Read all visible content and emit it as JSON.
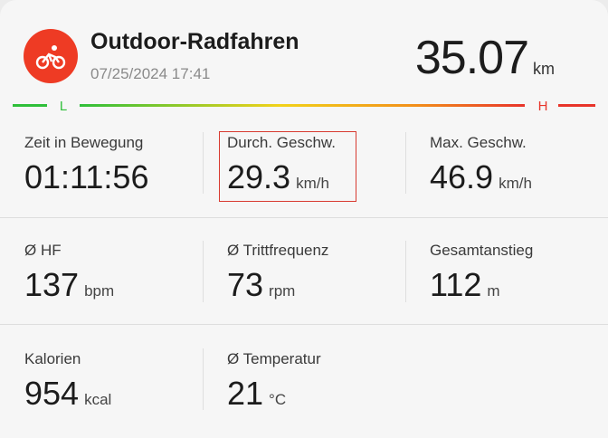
{
  "header": {
    "title": "Outdoor-Radfahren",
    "datetime": "07/25/2024 17:41",
    "distance": "35.07",
    "distance_unit": "km"
  },
  "intensity_bar": {
    "low": "L",
    "high": "H"
  },
  "stats": [
    {
      "label": "Zeit in Bewegung",
      "value": "01:11:56"
    },
    {
      "label": "Durch. Geschw.",
      "value": "29.3",
      "unit": "km/h"
    },
    {
      "label": "Max. Geschw.",
      "value": "46.9",
      "unit": "km/h"
    },
    {
      "label": "Ø HF",
      "value": "137",
      "unit": "bpm"
    },
    {
      "label": "Ø Trittfrequenz",
      "value": "73",
      "unit": "rpm"
    },
    {
      "label": "Gesamtanstieg",
      "value": "112",
      "unit": "m"
    },
    {
      "label": "Kalorien",
      "value": "954",
      "unit": "kcal"
    },
    {
      "label": "Ø Temperatur",
      "value": "21",
      "unit": "°C"
    }
  ]
}
